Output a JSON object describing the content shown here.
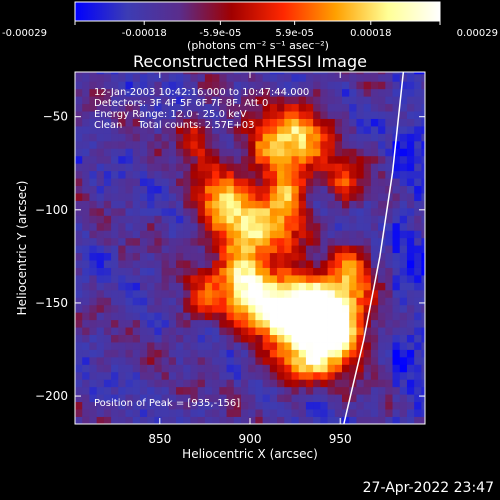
{
  "chart_data": {
    "type": "heatmap",
    "title": "Reconstructed RHESSI Image",
    "xlabel": "Heliocentric X (arcsec)",
    "ylabel": "Heliocentric Y (arcsec)",
    "xlim": [
      803,
      997
    ],
    "ylim": [
      -215,
      -26
    ],
    "x_ticks": [
      850,
      900,
      950
    ],
    "y_ticks": [
      -50,
      -100,
      -150,
      -200
    ],
    "colorbar": {
      "range": [
        -0.00029,
        0.00029
      ],
      "tick_values": [
        -0.00029,
        -0.00018,
        -5.9e-05,
        5.9e-05,
        0.00018,
        0.00029
      ],
      "tick_labels": [
        "-0.00029",
        "-0.00018",
        "-5.9e-05",
        "5.9e-05",
        "0.00018",
        "0.00029"
      ],
      "unit_label": "(photons cm⁻² s⁻¹ asec⁻²)"
    },
    "info_lines": [
      "12-Jan-2003 10:42:16.000 to 10:47:44.000",
      "Detectors: 3F 4F 5F 6F 7F 8F, Att 0",
      "Energy Range: 12.0 - 25.0 keV",
      "Clean     Total counts: 2.57E+03"
    ],
    "peak_label": "Position of Peak = [935,-156]",
    "peak": [
      935,
      -156
    ],
    "limb_points": [
      [
        952,
        -215
      ],
      [
        963,
        -170
      ],
      [
        972,
        -125
      ],
      [
        979,
        -80
      ],
      [
        985,
        -26
      ]
    ],
    "colors": {
      "background": "#000000",
      "text": "#ffffff",
      "limb": "#ffffff",
      "colormap": [
        "#0000ff",
        "#3c3cb4",
        "#5a2d8c",
        "#a00000",
        "#ff2800",
        "#ffa000",
        "#ffff96",
        "#ffffff"
      ]
    }
  },
  "footer": {
    "date_stamp": "27-Apr-2022 23:47"
  }
}
